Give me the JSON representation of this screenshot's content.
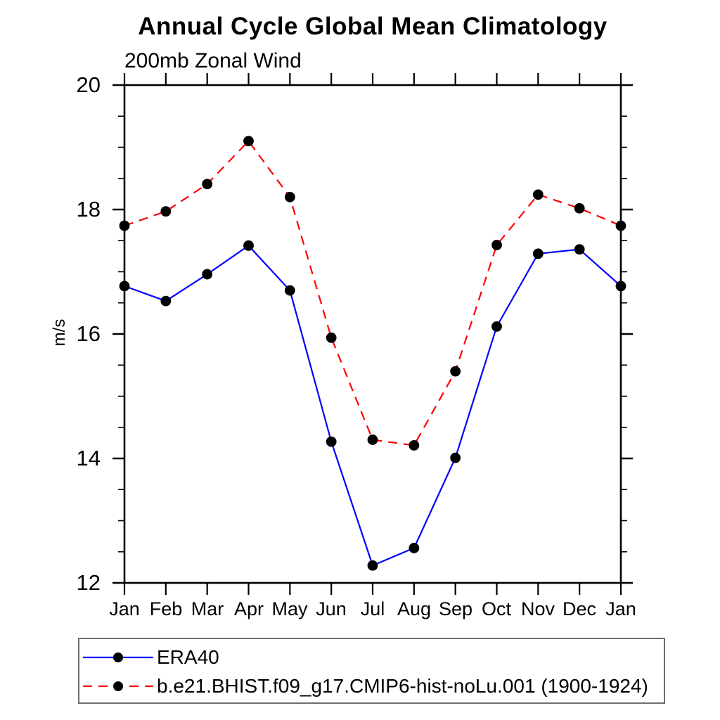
{
  "title": "Annual Cycle Global Mean Climatology",
  "subtitle": "200mb Zonal Wind",
  "y_axis_label": "m/s",
  "chart_data": {
    "type": "line",
    "x_labels": [
      "Jan",
      "Feb",
      "Mar",
      "Apr",
      "May",
      "Jun",
      "Jul",
      "Aug",
      "Sep",
      "Oct",
      "Nov",
      "Dec",
      "Jan"
    ],
    "y_ticks": [
      12,
      14,
      16,
      18,
      20
    ],
    "ylim": [
      12,
      20
    ],
    "y_minor_tick_step": 0.5,
    "grid": false,
    "legend_position": "bottom-left-box",
    "frame_color": "#000000",
    "marker": "filled-circle",
    "marker_color": "#000000",
    "series": [
      {
        "name": "ERA40",
        "line_color": "#0000ff",
        "line_style": "solid",
        "values": [
          16.77,
          16.53,
          16.96,
          17.42,
          16.7,
          14.27,
          12.28,
          12.56,
          14.01,
          16.12,
          17.29,
          17.36,
          16.77
        ]
      },
      {
        "name": "b.e21.BHIST.f09_g17.CMIP6-hist-noLu.001 (1900-1924)",
        "line_color": "#ff0000",
        "line_style": "dashed",
        "values": [
          17.74,
          17.97,
          18.41,
          19.1,
          18.2,
          15.94,
          14.3,
          14.21,
          15.4,
          17.43,
          18.24,
          18.02,
          17.74
        ]
      }
    ]
  }
}
